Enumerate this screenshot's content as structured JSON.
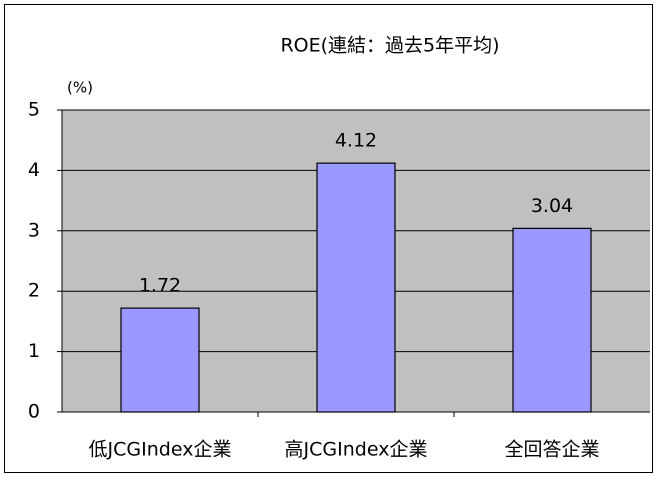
{
  "chart_data": {
    "type": "bar",
    "title": "ROE(連結：過去5年平均)",
    "y_label": "(%)",
    "categories": [
      "低JCGIndex企業",
      "高JCGIndex企業",
      "全回答企業"
    ],
    "values": [
      1.72,
      4.12,
      3.04
    ],
    "color": "#9999ff",
    "ylim": [
      0,
      5
    ],
    "yticks": [
      0,
      1,
      2,
      3,
      4,
      5
    ],
    "grid": true,
    "data_labels": true
  }
}
